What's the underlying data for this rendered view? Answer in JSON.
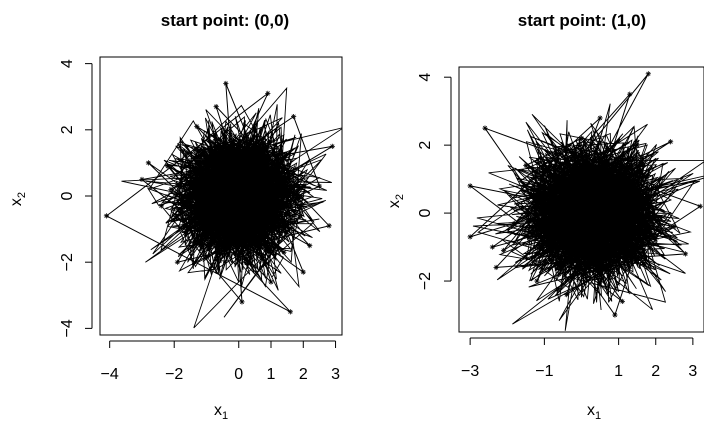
{
  "chart_data": [
    {
      "type": "line",
      "title": "start point: (0,0)",
      "xlabel": "x1",
      "ylabel": "x2",
      "xlim": [
        -4.3,
        3.2
      ],
      "ylim": [
        -4.2,
        4.2
      ],
      "xticks": [
        -4,
        -2,
        0,
        1,
        2,
        3
      ],
      "xtick_labels": [
        "−4",
        "−2",
        "0",
        "1",
        "2",
        "3"
      ],
      "yticks": [
        -4,
        -2,
        0,
        2,
        4
      ],
      "ytick_labels": [
        "−4",
        "−2",
        "0",
        "2",
        "4"
      ],
      "series": [
        {
          "marker": "asterisk",
          "x": [
            0,
            0.8,
            -0.5,
            1.2,
            -1.3,
            2.2,
            -2.2,
            0.3,
            -3.0,
            2.9,
            -1.0,
            1.6,
            -4.1,
            0.9,
            -1.2,
            2.5,
            1.7,
            -2.4,
            0.1,
            -0.4,
            2.0,
            -2.8,
            1.0,
            -0.7,
            2.8,
            -1.9,
            0.5,
            -2.1,
            1.4,
            -1.6,
            0.0
          ],
          "y": [
            0,
            1.2,
            -1.0,
            0.6,
            2.1,
            -1.5,
            0.9,
            -2.0,
            0.5,
            1.5,
            -0.8,
            -3.5,
            -0.6,
            3.1,
            -1.4,
            0.3,
            2.4,
            -0.3,
            -3.2,
            3.4,
            -2.3,
            1.0,
            -2.6,
            2.7,
            -0.9,
            -2.0,
            1.8,
            0.2,
            -1.7,
            1.3,
            0.0
          ]
        }
      ]
    },
    {
      "type": "line",
      "title": "start point: (1,0)",
      "xlabel": "x1",
      "ylabel": "x2",
      "xlim": [
        -3.3,
        3.3
      ],
      "ylim": [
        -3.5,
        4.3
      ],
      "xticks": [
        -3,
        -1,
        1,
        2,
        3
      ],
      "xtick_labels": [
        "−3",
        "−1",
        "1",
        "2",
        "3"
      ],
      "yticks": [
        -2,
        0,
        2,
        4
      ],
      "ytick_labels": [
        "−2",
        "0",
        "2",
        "4"
      ],
      "series": [
        {
          "marker": "asterisk",
          "x": [
            1,
            0.2,
            1.6,
            -0.8,
            2.4,
            -2.1,
            1.8,
            -1.2,
            0.5,
            -3.0,
            2.1,
            0.9,
            -2.6,
            3.2,
            -0.4,
            1.3,
            -1.8,
            0.7,
            -2.3,
            2.8,
            0.0,
            -1.5,
            1.1,
            -3.0,
            2.5,
            -0.6,
            1.5,
            -2.4,
            0.3,
            1.0
          ],
          "y": [
            0,
            1.3,
            -0.8,
            0.4,
            2.1,
            -1.1,
            4.1,
            -2.0,
            2.8,
            -0.7,
            1.0,
            -3.0,
            2.5,
            0.2,
            -2.4,
            3.5,
            -0.3,
            1.9,
            -1.6,
            -1.2,
            2.2,
            1.4,
            -2.6,
            0.8,
            -0.4,
            -1.8,
            2.0,
            -1.0,
            -0.2,
            0.0
          ]
        }
      ]
    }
  ]
}
